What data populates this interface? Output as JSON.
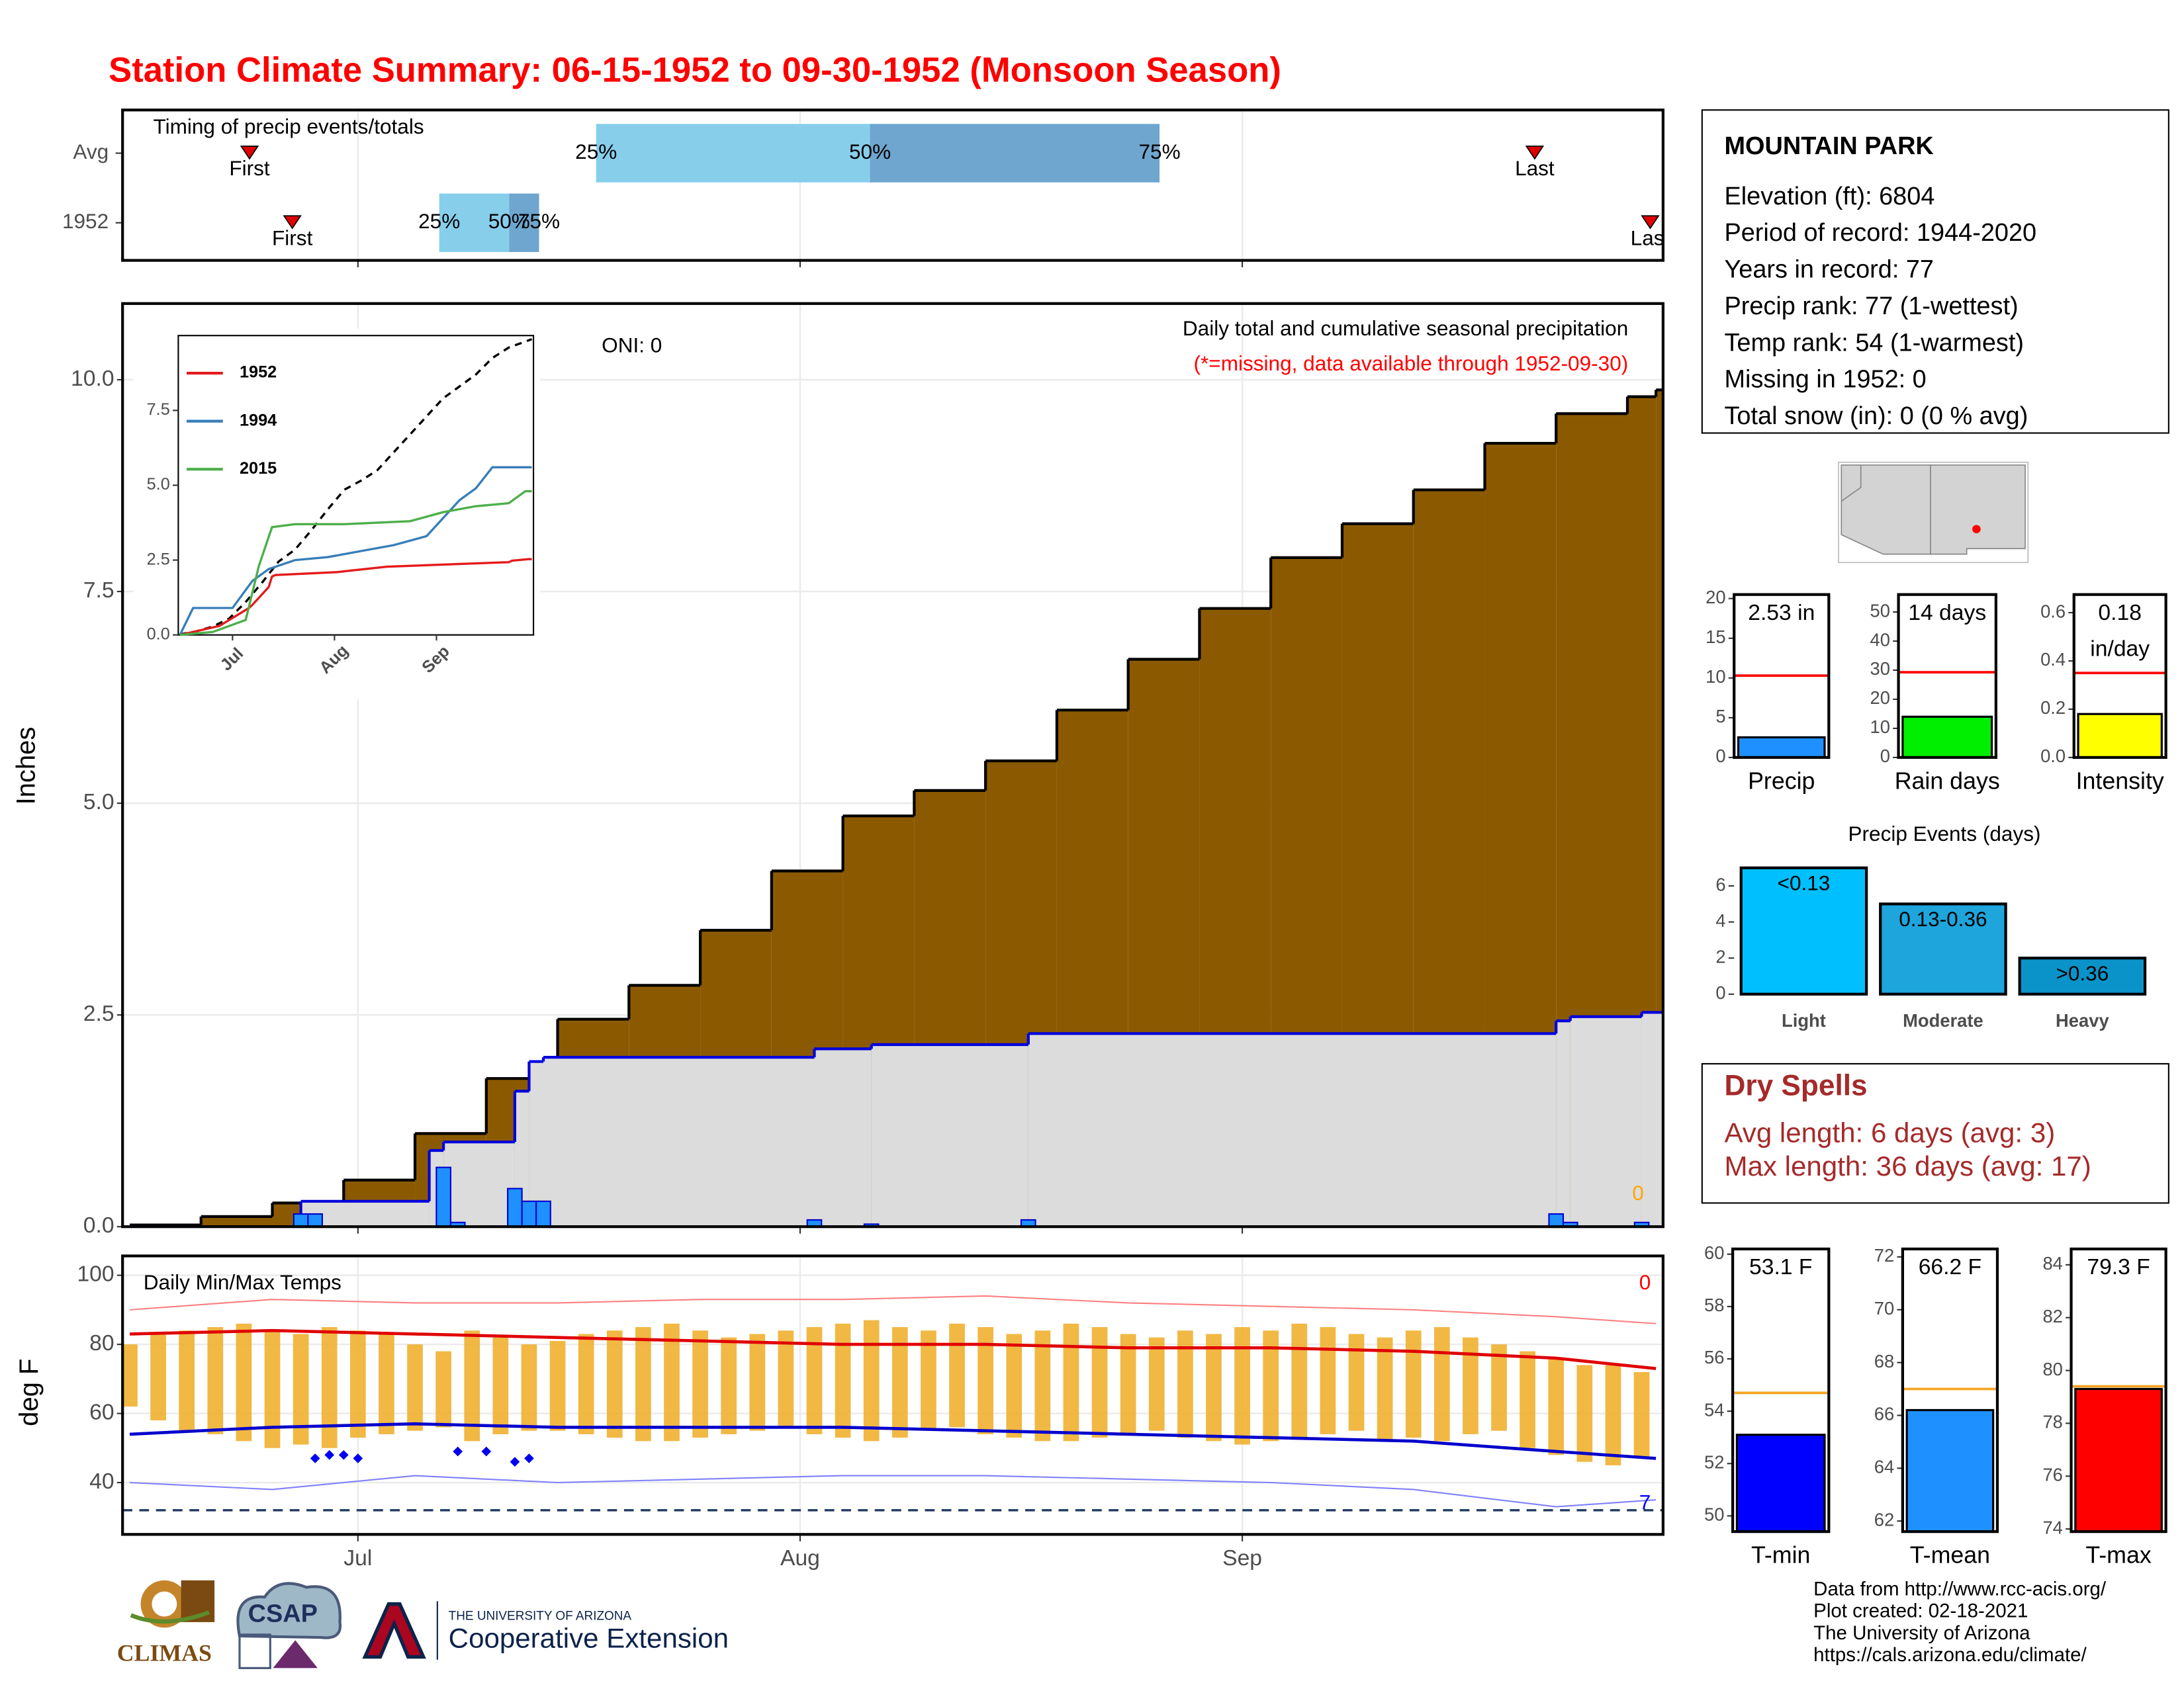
{
  "title": "Station Climate Summary: 06-15-1952 to 09-30-1952 (Monsoon Season)",
  "station": {
    "name": "MOUNTAIN PARK",
    "lines": [
      "Elevation (ft): 6804",
      "Period of record: 1944-2020",
      "Years in record: 77",
      "Precip rank: 77 (1-wettest)",
      "Temp rank: 54 (1-warmest)",
      "Missing in 1952: 0",
      "Total snow (in): 0 (0 % avg)"
    ]
  },
  "dry_spells": {
    "title": "Dry Spells",
    "lines": [
      "Avg length: 6 days (avg: 3)",
      "Max length: 36 days (avg: 17)"
    ]
  },
  "footer": [
    "Data from http://www.rcc-acis.org/",
    "Plot created: 02-18-2021",
    "The University of Arizona",
    "https://cals.arizona.edu/climate/"
  ],
  "logos": {
    "climas": "CLIMAS",
    "csap": "CSAP",
    "ua_small": "THE UNIVERSITY OF ARIZONA",
    "ua_big": "Cooperative Extension"
  },
  "chart_data": [
    {
      "type": "timeline",
      "title": "Timing of precip events/totals",
      "xlim": [
        -0.5,
        107.5
      ],
      "xticks": [
        16,
        47,
        78
      ],
      "labels": {
        "first": "First",
        "last": "Last",
        "p25": "25%",
        "p50": "50%",
        "p75": "75%"
      },
      "colors": [
        "#87ceeb",
        "#6ea6cf",
        "#e00000"
      ],
      "rows": [
        {
          "name": "Avg",
          "first": 8.4,
          "p25": 32.7,
          "p50": 51.9,
          "p75": 72.2,
          "last": 98.5
        },
        {
          "name": "1952",
          "first": 11.4,
          "p25": 21.7,
          "p50": 26.6,
          "p75": 28.7,
          "last": 106.6
        }
      ]
    },
    {
      "type": "precip",
      "title": "Daily total and cumulative seasonal precipitation",
      "note": "(*=missing, data available through 1952-09-30)",
      "oni": "ONI: 0",
      "corner_label": "0",
      "ylabel": "Inches",
      "grid": true,
      "xlim": [
        -0.5,
        107.5
      ],
      "xticks": [
        16,
        47,
        78
      ],
      "ylim": [
        0,
        10.9
      ],
      "yticks": [
        {
          "value": 0,
          "label": "0.0"
        },
        2.5,
        {
          "value": 5,
          "label": "5.0"
        },
        7.5,
        {
          "value": 10,
          "label": "10.0"
        }
      ],
      "cumulative_avg": {
        "color": "#8b5a00",
        "x": [
          0,
          5,
          10,
          15,
          20,
          25,
          30,
          35,
          40,
          45,
          50,
          55,
          60,
          65,
          70,
          75,
          80,
          85,
          90,
          95,
          100,
          105,
          107
        ],
        "values": [
          0.02,
          0.12,
          0.28,
          0.55,
          1.1,
          1.75,
          2.45,
          2.85,
          3.5,
          4.2,
          4.85,
          5.15,
          5.5,
          6.1,
          6.7,
          7.3,
          7.9,
          8.3,
          8.7,
          9.25,
          9.6,
          9.8,
          9.88
        ]
      },
      "cumulative_1952": {
        "color": "#0000dd",
        "x": [
          0,
          12,
          21,
          22,
          27,
          28,
          29,
          48,
          52,
          63,
          100,
          101,
          106
        ],
        "values": [
          0,
          0.3,
          0.9,
          1.0,
          1.6,
          1.95,
          2.0,
          2.1,
          2.15,
          2.28,
          2.43,
          2.48,
          2.53
        ]
      },
      "daily_1952": {
        "color": "#1e90ff",
        "x": [
          12,
          13,
          22,
          23,
          27,
          28,
          29,
          48,
          52,
          63,
          100,
          101,
          106
        ],
        "values": [
          0.15,
          0.15,
          0.7,
          0.05,
          0.45,
          0.3,
          0.3,
          0.08,
          0.03,
          0.08,
          0.15,
          0.05,
          0.05
        ]
      }
    },
    {
      "type": "line",
      "xlim": [
        -0.5,
        107.5
      ],
      "ylim": [
        0,
        10
      ],
      "xticks": [
        {
          "value": 16,
          "label": "Jul"
        },
        {
          "value": 47,
          "label": "Aug"
        },
        {
          "value": 78,
          "label": "Sep"
        }
      ],
      "yticks": [
        {
          "value": 0,
          "label": "0.0"
        },
        2.5,
        {
          "value": 5,
          "label": "5.0"
        },
        7.5
      ],
      "series": [
        {
          "name": "1952",
          "color": "#e41a1c",
          "x": [
            0,
            12,
            21,
            22,
            27,
            28,
            29,
            48,
            52,
            63,
            100,
            101,
            106,
            107
          ],
          "values": [
            0,
            0.3,
            0.9,
            1.0,
            1.6,
            1.95,
            2.0,
            2.1,
            2.15,
            2.28,
            2.43,
            2.48,
            2.53,
            2.53
          ]
        },
        {
          "name": "1994",
          "color": "#377eb8",
          "x": [
            0,
            4,
            16,
            22,
            27,
            35,
            45,
            55,
            65,
            75,
            80,
            85,
            90,
            95,
            107
          ],
          "values": [
            0,
            0.9,
            0.9,
            1.8,
            2.2,
            2.5,
            2.6,
            2.8,
            3.0,
            3.3,
            3.9,
            4.5,
            4.9,
            5.6,
            5.6
          ]
        },
        {
          "name": "2015",
          "color": "#4daf4a",
          "x": [
            0,
            10,
            20,
            24,
            28,
            35,
            50,
            70,
            80,
            90,
            100,
            105,
            107
          ],
          "values": [
            0,
            0.1,
            0.5,
            2.3,
            3.6,
            3.7,
            3.7,
            3.8,
            4.1,
            4.3,
            4.4,
            4.8,
            4.8
          ]
        }
      ]
    },
    {
      "type": "temps",
      "title": "Daily Min/Max Temps",
      "ylabel": "deg F",
      "hot_count": "0",
      "cold_count": "7",
      "grid": true,
      "xlim": [
        -0.5,
        107.5
      ],
      "ylim": [
        25,
        105.6
      ],
      "yticks": [
        40,
        60,
        80,
        100
      ],
      "freeze_line": 32,
      "xticks": [
        {
          "value": 16,
          "label": "Jul"
        },
        {
          "value": 47,
          "label": "Aug"
        },
        {
          "value": 78,
          "label": "Sep"
        }
      ],
      "bar_color": "#f0b030",
      "daily_x": [
        0,
        2,
        4,
        6,
        8,
        10,
        12,
        14,
        16,
        18,
        20,
        22,
        24,
        26,
        28,
        30,
        32,
        34,
        36,
        38,
        40,
        42,
        44,
        46,
        48,
        50,
        52,
        54,
        56,
        58,
        60,
        62,
        64,
        66,
        68,
        70,
        72,
        74,
        76,
        78,
        80,
        82,
        84,
        86,
        88,
        90,
        92,
        94,
        96,
        98,
        100,
        102,
        104,
        106
      ],
      "daily_max": [
        80,
        83,
        84,
        85,
        86,
        84,
        83,
        85,
        84,
        83,
        80,
        78,
        84,
        82,
        80,
        81,
        83,
        84,
        85,
        86,
        84,
        82,
        83,
        84,
        85,
        86,
        87,
        85,
        84,
        86,
        85,
        83,
        84,
        86,
        85,
        83,
        82,
        84,
        83,
        85,
        84,
        86,
        85,
        83,
        82,
        84,
        85,
        82,
        80,
        78,
        76,
        74,
        74,
        72
      ],
      "daily_min": [
        62,
        58,
        55,
        54,
        52,
        50,
        51,
        50,
        53,
        54,
        55,
        56,
        52,
        54,
        55,
        55,
        54,
        53,
        52,
        52,
        53,
        54,
        55,
        56,
        54,
        53,
        52,
        53,
        55,
        56,
        54,
        53,
        52,
        52,
        53,
        54,
        55,
        53,
        52,
        51,
        52,
        53,
        54,
        55,
        52,
        53,
        52,
        54,
        55,
        50,
        48,
        46,
        45,
        47
      ],
      "record_lows": {
        "color": "#0000ee",
        "x": [
          13,
          14,
          15,
          16,
          23,
          25,
          27,
          28
        ],
        "values": [
          47,
          48,
          48,
          47,
          49,
          49,
          46,
          47
        ]
      },
      "lines": [
        {
          "color": "#ff8080",
          "width": 1,
          "x": [
            0,
            10,
            20,
            30,
            40,
            50,
            60,
            70,
            80,
            90,
            100,
            107
          ],
          "values": [
            90,
            93,
            92,
            92,
            93,
            93,
            94,
            92,
            91,
            90,
            88,
            86
          ]
        },
        {
          "color": "#e00000",
          "width": 2.2,
          "x": [
            0,
            10,
            20,
            30,
            40,
            50,
            60,
            70,
            80,
            90,
            100,
            107
          ],
          "values": [
            83,
            84,
            83,
            82,
            81,
            80,
            80,
            79,
            79,
            78,
            76,
            73
          ]
        },
        {
          "color": "#0000cc",
          "width": 2.2,
          "x": [
            0,
            10,
            20,
            30,
            40,
            50,
            60,
            70,
            80,
            90,
            100,
            107
          ],
          "values": [
            54,
            56,
            57,
            56,
            56,
            56,
            55,
            54,
            53,
            52,
            49,
            47
          ]
        },
        {
          "color": "#8080ff",
          "width": 1,
          "x": [
            0,
            10,
            20,
            30,
            40,
            50,
            60,
            70,
            80,
            90,
            100,
            107
          ],
          "values": [
            40,
            38,
            42,
            40,
            41,
            42,
            42,
            41,
            40,
            38,
            33,
            35
          ]
        }
      ]
    },
    {
      "type": "gauge",
      "value": 2.53,
      "average": 10.3,
      "value_labels": [
        "2.53 in"
      ],
      "xlabel": "Precip",
      "color": "#1e90ff",
      "avg_color": "#ff0000",
      "ylim": [
        0,
        20.5
      ],
      "yticks": [
        0,
        5,
        10,
        15,
        20
      ]
    },
    {
      "type": "gauge",
      "value": 14,
      "average": 29.3,
      "value_labels": [
        "14 days"
      ],
      "xlabel": "Rain days",
      "color": "#00ee00",
      "avg_color": "#ff0000",
      "ylim": [
        0,
        56
      ],
      "yticks": [
        0,
        10,
        20,
        30,
        40,
        50
      ]
    },
    {
      "type": "gauge",
      "value": 0.18,
      "average": 0.35,
      "value_labels": [
        "0.18",
        "in/day"
      ],
      "xlabel": "Intensity",
      "color": "#ffff00",
      "avg_color": "#ff0000",
      "ylim": [
        0,
        0.675
      ],
      "yticks": [
        {
          "value": 0,
          "label": "0.0"
        },
        0.2,
        0.4,
        0.6
      ]
    },
    {
      "type": "bar",
      "title": "Precip Events (days)",
      "categories": [
        "Light",
        "Moderate",
        "Heavy"
      ],
      "values": [
        7,
        5,
        2
      ],
      "value_labels": [
        "<0.13",
        "0.13-0.36",
        ">0.36"
      ],
      "colors": [
        "#00bfff",
        "#1ea5dc",
        "#0a93c8"
      ],
      "ylim": [
        0,
        7.1
      ],
      "yticks": [
        0,
        2,
        4,
        6
      ]
    },
    {
      "type": "gauge",
      "value": 53.1,
      "average": 54.7,
      "value_labels": [
        "53.1 F"
      ],
      "xlabel": "T-min",
      "color": "#0000ff",
      "avg_color": "#f5a623",
      "ylim": [
        49.4,
        60.2
      ],
      "yticks": [
        50,
        52,
        54,
        56,
        58,
        60
      ]
    },
    {
      "type": "gauge",
      "value": 66.2,
      "average": 67.0,
      "value_labels": [
        "66.2 F"
      ],
      "xlabel": "T-mean",
      "color": "#1e90ff",
      "avg_color": "#f5a623",
      "ylim": [
        61.6,
        72.3
      ],
      "yticks": [
        62,
        64,
        66,
        68,
        70,
        72
      ]
    },
    {
      "type": "gauge",
      "value": 79.3,
      "average": 79.4,
      "value_labels": [
        "79.3 F"
      ],
      "xlabel": "T-max",
      "color": "#ff0000",
      "avg_color": "#f5a623",
      "ylim": [
        73.9,
        84.6
      ],
      "yticks": [
        74,
        76,
        78,
        80,
        82,
        84
      ]
    }
  ]
}
